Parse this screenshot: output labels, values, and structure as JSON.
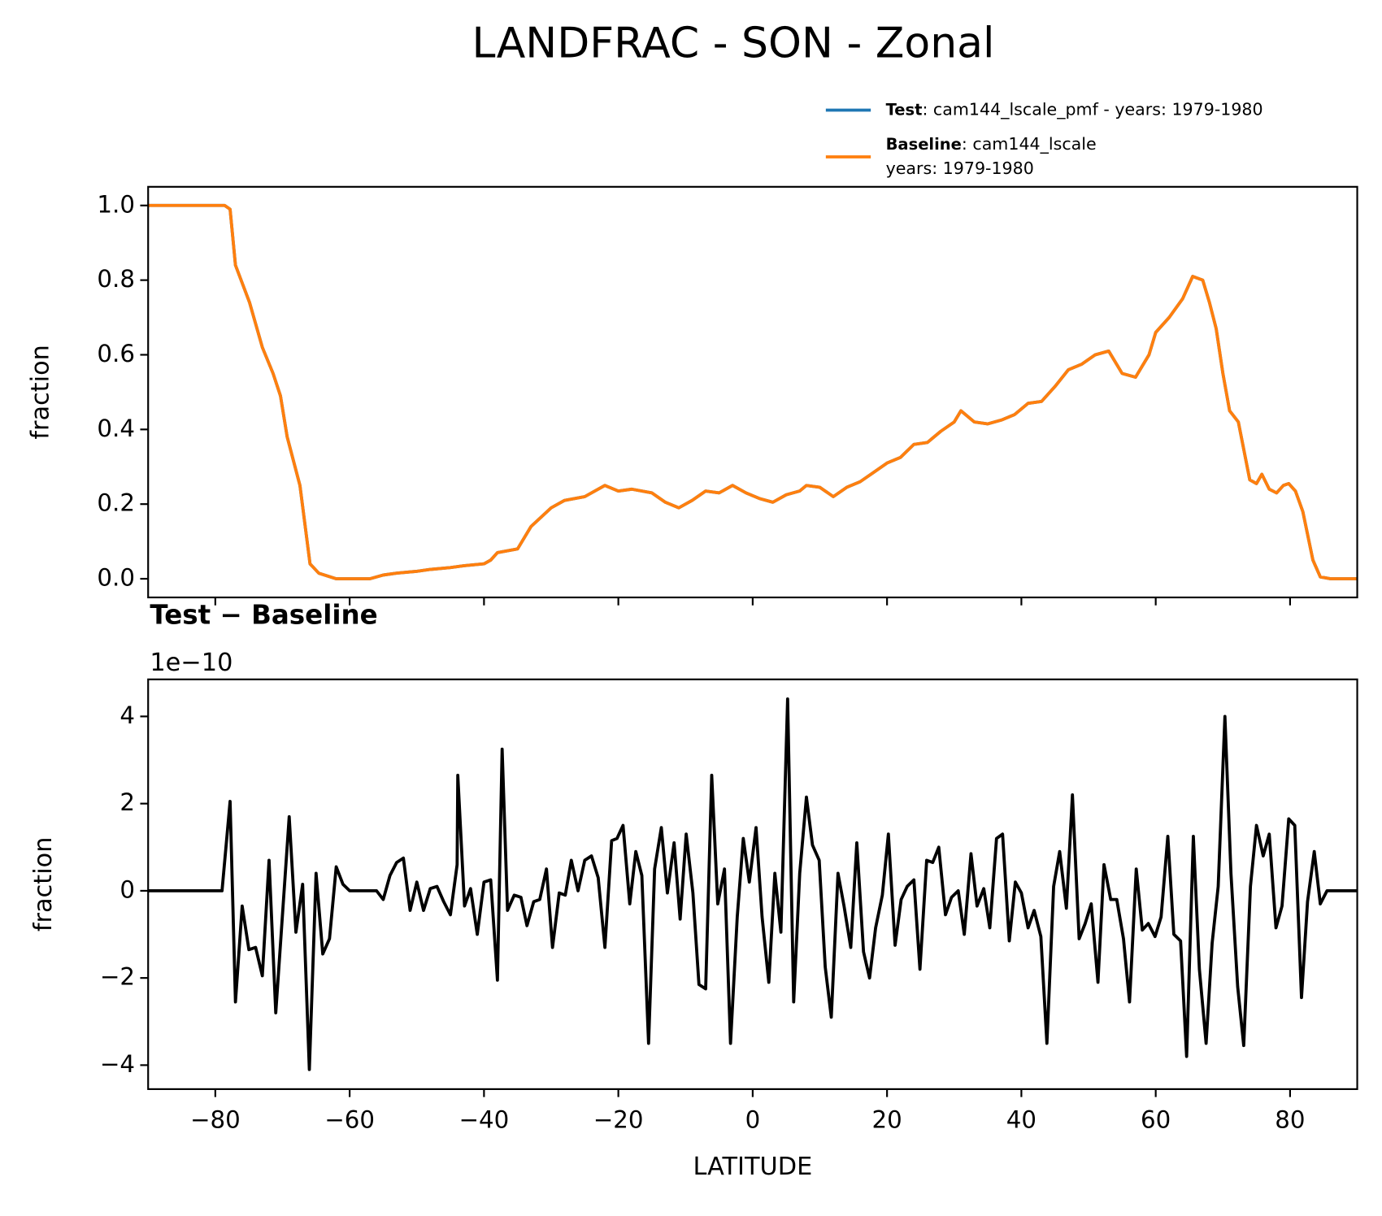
{
  "chart_data": [
    {
      "type": "line",
      "title": "LANDFRAC - SON - Zonal",
      "ylabel": "fraction",
      "x": [
        -90,
        -88,
        -86,
        -84,
        -82,
        -80,
        -78.6,
        -77.8,
        -77,
        -74.9,
        -73,
        -71.4,
        -70.3,
        -69.3,
        -67.4,
        -65.9,
        -64.6,
        -62,
        -60,
        -58,
        -57,
        -55,
        -53,
        -50,
        -48,
        -45,
        -43,
        -40,
        -39,
        -38,
        -35,
        -33,
        -30,
        -28,
        -25,
        -22,
        -20,
        -18,
        -15,
        -13,
        -11,
        -9,
        -7,
        -5,
        -3,
        -1,
        1,
        3,
        5,
        7,
        8,
        10,
        12,
        14,
        16,
        18,
        20,
        22,
        24,
        26,
        28,
        30,
        31,
        33,
        35,
        37,
        39,
        41,
        43,
        45,
        47,
        49,
        51,
        53,
        55,
        57,
        59,
        60,
        62,
        64,
        65.5,
        67,
        68,
        69,
        70,
        71,
        72.3,
        74,
        75,
        75.8,
        76.9,
        78,
        79,
        79.8,
        80.8,
        81.9,
        83.4,
        84.5,
        86,
        88,
        90
      ],
      "series": [
        {
          "name": "Test",
          "label": [
            ": cam144_lscale_pmf - years: 1979-1980"
          ],
          "color": "#1f77b4",
          "values": [
            1,
            1,
            1,
            1,
            1,
            1,
            1,
            0.99,
            0.84,
            0.74,
            0.62,
            0.55,
            0.49,
            0.38,
            0.25,
            0.04,
            0.015,
            0,
            0,
            0,
            0,
            0.01,
            0.015,
            0.02,
            0.025,
            0.03,
            0.035,
            0.04,
            0.05,
            0.07,
            0.08,
            0.14,
            0.19,
            0.21,
            0.22,
            0.25,
            0.235,
            0.24,
            0.23,
            0.205,
            0.19,
            0.21,
            0.235,
            0.23,
            0.25,
            0.23,
            0.215,
            0.205,
            0.225,
            0.235,
            0.25,
            0.245,
            0.22,
            0.245,
            0.26,
            0.285,
            0.31,
            0.325,
            0.36,
            0.365,
            0.395,
            0.42,
            0.45,
            0.42,
            0.415,
            0.425,
            0.44,
            0.47,
            0.475,
            0.515,
            0.56,
            0.575,
            0.6,
            0.61,
            0.55,
            0.54,
            0.6,
            0.66,
            0.7,
            0.75,
            0.81,
            0.8,
            0.74,
            0.67,
            0.55,
            0.45,
            0.42,
            0.265,
            0.255,
            0.28,
            0.24,
            0.23,
            0.25,
            0.255,
            0.235,
            0.18,
            0.05,
            0.005,
            0,
            0,
            0
          ]
        },
        {
          "name": "Baseline",
          "label": [
            ": cam144_lscale",
            "years: 1979-1980"
          ],
          "color": "#ff7f0e",
          "values": [
            1,
            1,
            1,
            1,
            1,
            1,
            1,
            0.99,
            0.84,
            0.74,
            0.62,
            0.55,
            0.49,
            0.38,
            0.25,
            0.04,
            0.015,
            0,
            0,
            0,
            0,
            0.01,
            0.015,
            0.02,
            0.025,
            0.03,
            0.035,
            0.04,
            0.05,
            0.07,
            0.08,
            0.14,
            0.19,
            0.21,
            0.22,
            0.25,
            0.235,
            0.24,
            0.23,
            0.205,
            0.19,
            0.21,
            0.235,
            0.23,
            0.25,
            0.23,
            0.215,
            0.205,
            0.225,
            0.235,
            0.25,
            0.245,
            0.22,
            0.245,
            0.26,
            0.285,
            0.31,
            0.325,
            0.36,
            0.365,
            0.395,
            0.42,
            0.45,
            0.42,
            0.415,
            0.425,
            0.44,
            0.47,
            0.475,
            0.515,
            0.56,
            0.575,
            0.6,
            0.61,
            0.55,
            0.54,
            0.6,
            0.66,
            0.7,
            0.75,
            0.81,
            0.8,
            0.74,
            0.67,
            0.55,
            0.45,
            0.42,
            0.265,
            0.255,
            0.28,
            0.24,
            0.23,
            0.25,
            0.255,
            0.235,
            0.18,
            0.05,
            0.005,
            0,
            0,
            0
          ]
        }
      ],
      "xlim": [
        -90,
        90
      ],
      "xticks": [
        {
          "value": -80,
          "label": "−80"
        },
        {
          "value": -60,
          "label": "−60"
        },
        {
          "value": -40,
          "label": "−40"
        },
        {
          "value": -20,
          "label": "−20"
        },
        0,
        20,
        40,
        60,
        80
      ],
      "ylim": [
        -0.05,
        1.05
      ],
      "yticks": [
        {
          "value": 0,
          "label": "0.0"
        },
        0.2,
        0.4,
        0.6,
        0.8,
        {
          "value": 1,
          "label": "1.0"
        }
      ]
    },
    {
      "type": "line",
      "title": "Test − Baseline",
      "offset_text": "1e−10",
      "ylabel": "fraction",
      "xlabel": "LATITUDE",
      "color": "#000000",
      "x": [
        -90,
        -85,
        -80,
        -79,
        -77.8,
        -77,
        -76,
        -75,
        -74,
        -73,
        -72,
        -71,
        -69,
        -68,
        -67,
        -66,
        -65,
        -64,
        -63,
        -62,
        -61,
        -60,
        -56,
        -55,
        -54,
        -53,
        -52,
        -51,
        -50,
        -49,
        -48,
        -47,
        -46,
        -45,
        -44,
        -43.9,
        -42.9,
        -42,
        -41,
        -40,
        -39,
        -38,
        -37.3,
        -36.5,
        -35.5,
        -34.5,
        -33.6,
        -32.6,
        -31.7,
        -30.7,
        -29.8,
        -28.8,
        -27.9,
        -27,
        -26,
        -25,
        -24,
        -23,
        -22,
        -21,
        -20.2,
        -19.3,
        -18.3,
        -17.4,
        -16.5,
        -15.5,
        -14.6,
        -13.6,
        -12.7,
        -11.7,
        -10.8,
        -9.9,
        -8.9,
        -8,
        -7,
        -6.1,
        -5.2,
        -4.2,
        -3.3,
        -2.3,
        -1.4,
        -0.5,
        0.5,
        1.4,
        2.4,
        3.3,
        4.2,
        5.2,
        6.1,
        7,
        8,
        8.9,
        9.9,
        10.8,
        11.7,
        12.7,
        13.6,
        14.6,
        15.5,
        16.5,
        17.4,
        18.3,
        19.3,
        20.2,
        21.2,
        22.1,
        23,
        24,
        24.9,
        25.9,
        26.8,
        27.7,
        28.7,
        29.6,
        30.6,
        31.5,
        32.5,
        33.4,
        34.4,
        35.3,
        36.3,
        37.2,
        38.2,
        39.1,
        40,
        41,
        41.9,
        42.9,
        43.8,
        44.8,
        45.7,
        46.7,
        47.6,
        48.6,
        49.5,
        50.4,
        51.4,
        52.3,
        53.3,
        54.2,
        55.2,
        56.1,
        57.1,
        58,
        58.9,
        59.9,
        60.8,
        61.8,
        62.7,
        63.7,
        64.6,
        65.6,
        66.5,
        67.5,
        68.4,
        69.3,
        70.3,
        71.2,
        72.2,
        73.1,
        74.1,
        75,
        76,
        76.9,
        77.9,
        78.8,
        79.8,
        80.7,
        81.7,
        82.6,
        83.6,
        84.5,
        85.5,
        90
      ],
      "values": [
        0,
        0,
        0,
        0,
        2.05,
        -2.55,
        -0.35,
        -1.35,
        -1.3,
        -1.95,
        0.7,
        -2.8,
        1.7,
        -0.95,
        0.15,
        -4.1,
        0.4,
        -1.45,
        -1.1,
        0.55,
        0.15,
        0,
        0,
        -0.2,
        0.35,
        0.65,
        0.75,
        -0.45,
        0.2,
        -0.45,
        0.05,
        0.1,
        -0.25,
        -0.55,
        0.6,
        2.65,
        -0.35,
        0.05,
        -1,
        0.2,
        0.25,
        -2.05,
        3.25,
        -0.45,
        -0.1,
        -0.15,
        -0.8,
        -0.25,
        -0.2,
        0.5,
        -1.3,
        -0.05,
        -0.1,
        0.7,
        0,
        0.7,
        0.8,
        0.3,
        -1.3,
        1.15,
        1.2,
        1.5,
        -0.3,
        0.9,
        0.35,
        -3.5,
        0.5,
        1.45,
        -0.05,
        1.1,
        -0.65,
        1.3,
        -0.05,
        -2.15,
        -2.25,
        2.65,
        -0.3,
        0.5,
        -3.5,
        -0.6,
        1.2,
        0.2,
        1.45,
        -0.6,
        -2.1,
        0.4,
        -0.95,
        4.4,
        -2.55,
        0.4,
        2.15,
        1.05,
        0.7,
        -1.75,
        -2.9,
        0.4,
        -0.35,
        -1.3,
        1.1,
        -1.4,
        -2,
        -0.85,
        -0.1,
        1.3,
        -1.25,
        -0.2,
        0.1,
        0.25,
        -1.8,
        0.7,
        0.65,
        1,
        -0.55,
        -0.15,
        0,
        -1,
        0.85,
        -0.35,
        0.05,
        -0.85,
        1.2,
        1.3,
        -1.15,
        0.2,
        -0.05,
        -0.85,
        -0.45,
        -1.05,
        -3.5,
        0.1,
        0.9,
        -0.4,
        2.2,
        -1.1,
        -0.75,
        -0.3,
        -2.1,
        0.6,
        -0.2,
        -0.2,
        -1.1,
        -2.55,
        0.5,
        -0.9,
        -0.75,
        -1.05,
        -0.6,
        1.25,
        -1,
        -1.15,
        -3.8,
        1.25,
        -1.8,
        -3.5,
        -1.2,
        0.1,
        4,
        0.4,
        -2.2,
        -3.55,
        0.1,
        1.5,
        0.8,
        1.3,
        -0.85,
        -0.35,
        1.65,
        1.5,
        -2.45,
        -0.25,
        0.9,
        -0.3,
        0,
        0
      ],
      "xlim": [
        -90,
        90
      ],
      "xticks": [
        {
          "value": -80,
          "label": "−80"
        },
        {
          "value": -60,
          "label": "−60"
        },
        {
          "value": -40,
          "label": "−40"
        },
        {
          "value": -20,
          "label": "−20"
        },
        0,
        20,
        40,
        60,
        80
      ],
      "ylim": [
        -4.55,
        4.85
      ],
      "yticks": [
        {
          "value": -4,
          "label": "−4"
        },
        {
          "value": -2,
          "label": "−2"
        },
        0,
        2,
        4
      ]
    }
  ]
}
